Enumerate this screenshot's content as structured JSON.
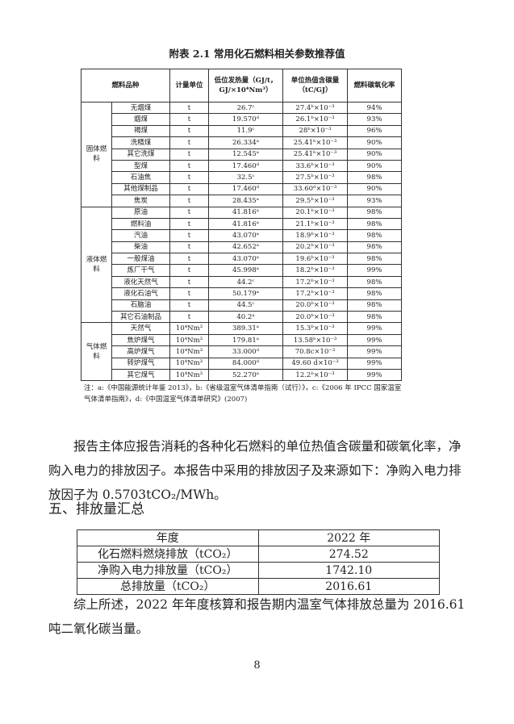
{
  "table_title": "附表 2.1 常用化石燃料相关参数推荐值",
  "headers": [
    "燃料品种",
    "计量单位",
    "低位发热量（GJ/t，GJ/×10⁴Nm³）",
    "单位热值含碳量（tC/GJ）",
    "燃料碳氧化率"
  ],
  "groups": [
    {
      "name": "固体燃料",
      "rows": [
        [
          "无烟煤",
          "t",
          "26.7ᶜ",
          "27.4ᵇ×10⁻³",
          "94%"
        ],
        [
          "烟煤",
          "t",
          "19.570ᵈ",
          "26.1ᵇ×10⁻³",
          "93%"
        ],
        [
          "褐煤",
          "t",
          "11.9ᶜ",
          "28ᵇ×10⁻³",
          "96%"
        ],
        [
          "洗精煤",
          "t",
          "26.334ᵃ",
          "25.41ᵇ×10⁻³",
          "90%"
        ],
        [
          "其它洗煤",
          "t",
          "12.545ᵃ",
          "25.41ᵇ×10⁻³",
          "90%"
        ],
        [
          "型煤",
          "t",
          "17.460ᵈ",
          "33.6ᵇ×10⁻³",
          "90%"
        ],
        [
          "石油焦",
          "t",
          "32.5ᶜ",
          "27.5ᵇ×10⁻³",
          "98%"
        ],
        [
          "其他煤制品",
          "t",
          "17.460ᵈ",
          "33.60ᵈ×10⁻³",
          "90%"
        ],
        [
          "焦炭",
          "t",
          "28.435ᵃ",
          "29.5ᵇ×10⁻³",
          "93%"
        ]
      ]
    },
    {
      "name": "液体燃料",
      "rows": [
        [
          "原油",
          "t",
          "41.816ᵃ",
          "20.1ᵇ×10⁻³",
          "98%"
        ],
        [
          "燃料油",
          "t",
          "41.816ᵃ",
          "21.1ᵇ×10⁻³",
          "98%"
        ],
        [
          "汽油",
          "t",
          "43.070ᵃ",
          "18.9ᵇ×10⁻³",
          "98%"
        ],
        [
          "柴油",
          "t",
          "42.652ᵃ",
          "20.2ᵇ×10⁻³",
          "98%"
        ],
        [
          "一般煤油",
          "t",
          "43.070ᵃ",
          "19.6ᵇ×10⁻³",
          "98%"
        ],
        [
          "炼厂干气",
          "t",
          "45.998ᵃ",
          "18.2ᵇ×10⁻³",
          "99%"
        ],
        [
          "液化天然气",
          "t",
          "44.2ᶜ",
          "17.2ᵇ×10⁻³",
          "98%"
        ],
        [
          "液化石油气",
          "t",
          "50.179ᵃ",
          "17.2ᵇ×10⁻³",
          "98%"
        ],
        [
          "石脑油",
          "t",
          "44.5ᶜ",
          "20.0ᵇ×10⁻³",
          "98%"
        ],
        [
          "其它石油制品",
          "t",
          "40.2ᵃ",
          "20.0ᵇ×10⁻³",
          "98%"
        ]
      ]
    },
    {
      "name": "气体燃料",
      "rows": [
        [
          "天然气",
          "10⁴Nm³",
          "389.31ᵃ",
          "15.3ᵇ×10⁻³",
          "99%"
        ],
        [
          "焦炉煤气",
          "10⁴Nm³",
          "179.81ᵃ",
          "13.58ᵇ×10⁻³",
          "99%"
        ],
        [
          "高炉煤气",
          "10⁴Nm³",
          "33.000ᵈ",
          "70.8c×10⁻³",
          "99%"
        ],
        [
          "转炉煤气",
          "10⁴Nm³",
          "84.000ᵈ",
          "49.60 d×10⁻³",
          "99%"
        ],
        [
          "其它煤气",
          "10⁴Nm³",
          "52.270ᵃ",
          "12.2ᵇ×10⁻³",
          "99%"
        ]
      ]
    }
  ],
  "note": "注：a:《中国能源统计年鉴 2013》，b:《省级温室气体清单指南（试行）》，c:《2006 年 IPCC 国家温室气体清单指南》，d:《中国温室气体清单研究》(2007)",
  "para1": "报告主体应报告消耗的各种化石燃料的单位热值含碳量和碳氧化率，净购入电力的排放因子。本报告中采用的排放因子及来源如下：净购入电力排放因子为 0.5703tCO₂/MWh。",
  "heading": "五、排放量汇总",
  "summary": [
    [
      "年度",
      "2022 年"
    ],
    [
      "化石燃料燃烧排放（tCO₂）",
      "274.52"
    ],
    [
      "净购入电力排放量（tCO₂）",
      "1742.10"
    ],
    [
      "总排放量（tCO₂）",
      "2016.61"
    ]
  ],
  "para2": "综上所述，2022 年年度核算和报告期内温室气体排放总量为 2016.61 吨二氧化碳当量。",
  "page_number": "8"
}
